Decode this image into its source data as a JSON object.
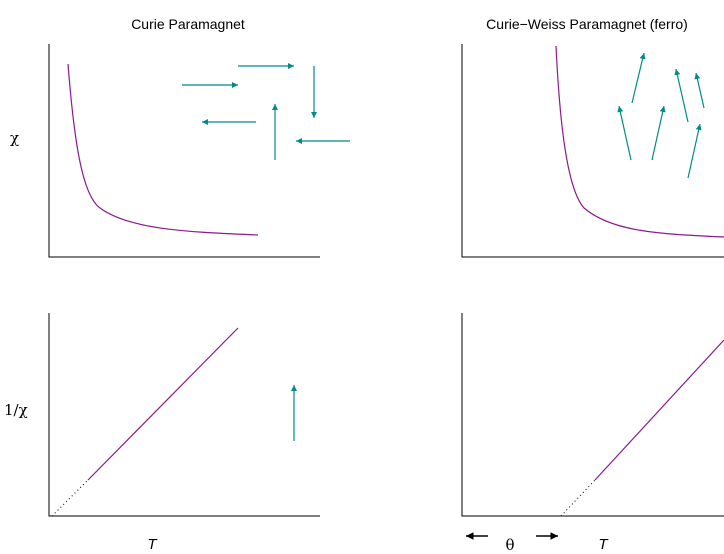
{
  "left_panel": {
    "title": "Curie Paramagnet"
  },
  "right_panel": {
    "title": "Curie−Weiss Paramagnet (ferro)"
  },
  "axis_labels": {
    "chi": "χ",
    "inv_chi": "1/χ",
    "temperature_left": "T",
    "temperature_right": "T",
    "theta": "θ"
  },
  "colors": {
    "curve": "#8b1a8b",
    "spin_arrow": "#008b8b",
    "axis": "#000000"
  },
  "icons": {
    "spin_arrows_left": "random-orientation-arrows",
    "spin_arrows_right": "aligned-arrows",
    "theta_arrow": "double-headed-arrow"
  }
}
